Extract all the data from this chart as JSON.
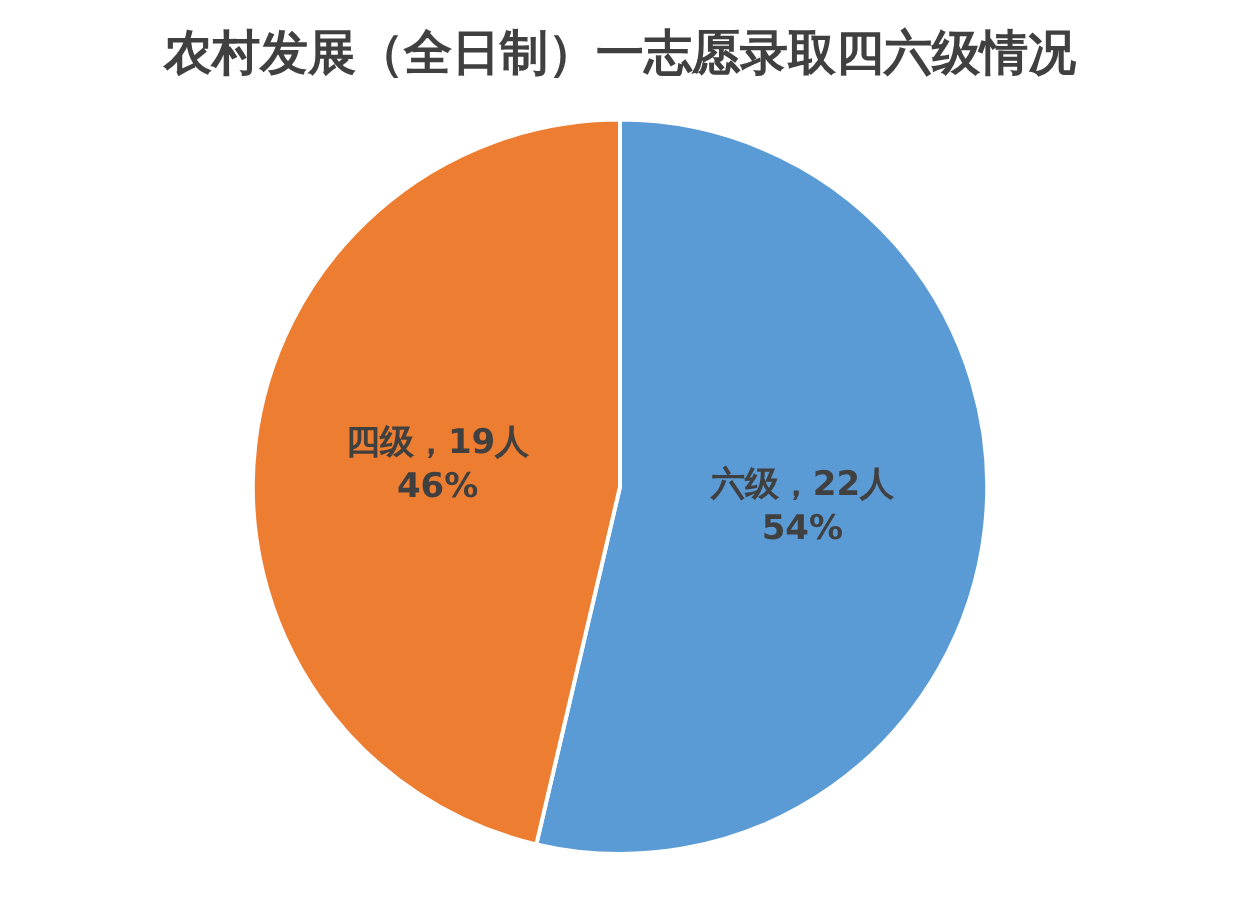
{
  "chart_data": {
    "type": "pie",
    "title": "农村发展（全日制）一志愿录取四六级情况",
    "categories": [
      "六级",
      "四级"
    ],
    "values": [
      22,
      19
    ],
    "colors": [
      "#5b9bd5",
      "#ed7d31"
    ],
    "value_labels": [
      "，22人\n54%",
      "，19人\n46%"
    ],
    "legend": false
  }
}
